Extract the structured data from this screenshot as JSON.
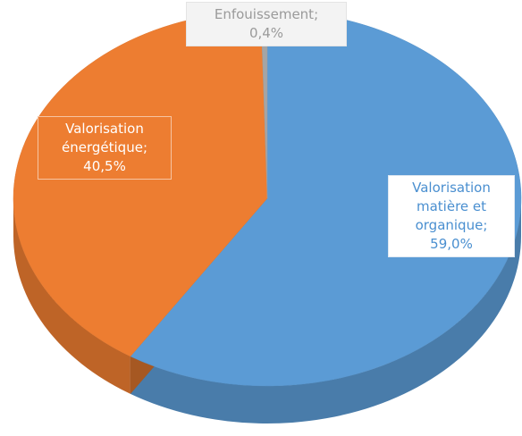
{
  "chart_data": {
    "type": "pie3d",
    "categories": [
      "Valorisation matière et organique",
      "Valorisation énergétique",
      "Enfouissement"
    ],
    "values": [
      59.0,
      40.5,
      0.4
    ],
    "value_labels": [
      "59,0%",
      "40,5%",
      "0,4%"
    ],
    "label_separator": ";",
    "colors": [
      "#5b9bd5",
      "#ed7d31",
      "#a5a5a5"
    ],
    "start_angle": 90,
    "direction": "clockwise"
  }
}
